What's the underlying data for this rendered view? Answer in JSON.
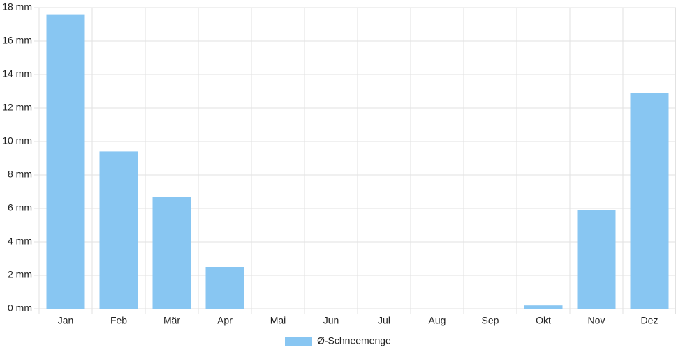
{
  "chart_data": {
    "type": "bar",
    "categories": [
      "Jan",
      "Feb",
      "Mär",
      "Apr",
      "Mai",
      "Jun",
      "Jul",
      "Aug",
      "Sep",
      "Okt",
      "Nov",
      "Dez"
    ],
    "series": [
      {
        "name": "Ø-Schneemenge",
        "color": "#88c6f2",
        "values": [
          17.6,
          9.4,
          6.7,
          2.5,
          0,
          0,
          0,
          0,
          0,
          0.2,
          5.9,
          12.9
        ]
      }
    ],
    "ylim": [
      0,
      18
    ],
    "yticks": [
      {
        "value": 0,
        "label": "0 mm"
      },
      {
        "value": 2,
        "label": "2 mm"
      },
      {
        "value": 4,
        "label": "4 mm"
      },
      {
        "value": 6,
        "label": "6 mm"
      },
      {
        "value": 8,
        "label": "8 mm"
      },
      {
        "value": 10,
        "label": "10 mm"
      },
      {
        "value": 12,
        "label": "12 mm"
      },
      {
        "value": 14,
        "label": "14 mm"
      },
      {
        "value": 16,
        "label": "16 mm"
      },
      {
        "value": 18,
        "label": "18 mm"
      }
    ],
    "grid": true,
    "legend": "bottom"
  }
}
